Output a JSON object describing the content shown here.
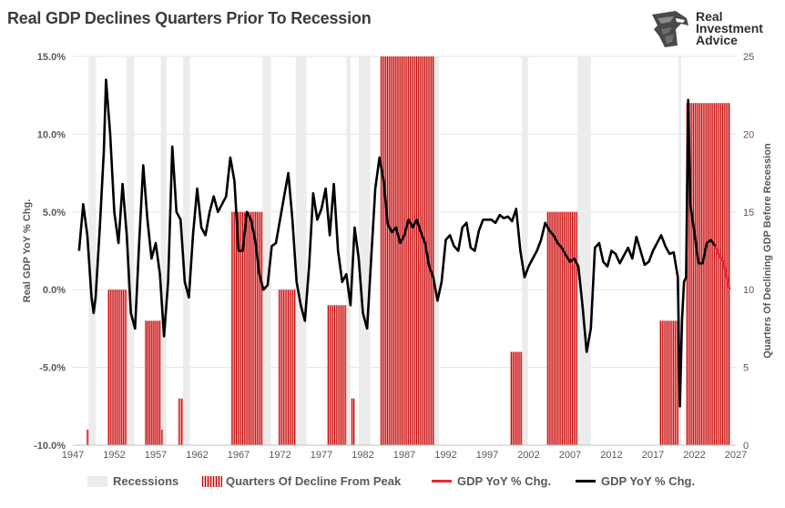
{
  "title": "Real GDP Declines Quarters Prior To Recession",
  "logo": {
    "line1": "Real",
    "line2": "Investment",
    "line3": "Advice",
    "icon": "eagle-head-icon"
  },
  "legend": {
    "recessions": "Recessions",
    "quarters": "Quarters Of Decline From Peak",
    "gdp_red": "GDP YoY % Chg.",
    "gdp_black": "GDP YoY % Chg."
  },
  "colors": {
    "recession": "#ececec",
    "bar": "#c00000",
    "bar_light": "#f2a0a0",
    "line_black": "#000000",
    "line_red": "#e8273a",
    "text": "#595959"
  },
  "chart_data": {
    "type": "line",
    "title": "Real GDP Declines Quarters Prior To Recession",
    "ylabel": "Real GDP YoY % Chg.",
    "y2label": "Quarters Of Declining GDP Before Recession",
    "xlim": [
      1947,
      2027
    ],
    "ylim": [
      -10,
      15
    ],
    "y2lim": [
      0,
      25
    ],
    "x_ticks": [
      1947,
      1952,
      1957,
      1962,
      1967,
      1972,
      1977,
      1982,
      1987,
      1992,
      1997,
      2002,
      2007,
      2012,
      2017,
      2022,
      2027
    ],
    "y_ticks": [
      "-10.0%",
      "-5.0%",
      "0.0%",
      "5.0%",
      "10.0%",
      "15.0%"
    ],
    "y2_ticks": [
      0,
      5,
      10,
      15,
      20,
      25
    ],
    "grid": true,
    "legend_position": "bottom",
    "recessions": [
      [
        1948.9,
        1949.8
      ],
      [
        1953.5,
        1954.4
      ],
      [
        1957.6,
        1958.3
      ],
      [
        1960.3,
        1961.1
      ],
      [
        1969.9,
        1970.9
      ],
      [
        1973.9,
        1975.2
      ],
      [
        1980.0,
        1980.5
      ],
      [
        1981.5,
        1982.9
      ],
      [
        1990.6,
        1991.2
      ],
      [
        2001.2,
        2001.9
      ],
      [
        2007.9,
        2009.5
      ],
      [
        2020.1,
        2020.4
      ]
    ],
    "decline_periods": [
      {
        "start": 1948.6,
        "end": 1948.95,
        "quarters": 1
      },
      {
        "start": 1951.2,
        "end": 1953.5,
        "quarters": 10
      },
      {
        "start": 1955.7,
        "end": 1957.6,
        "quarters": 8
      },
      {
        "start": 1957.6,
        "end": 1957.9,
        "quarters": 1
      },
      {
        "start": 1959.7,
        "end": 1960.3,
        "quarters": 3
      },
      {
        "start": 1966.1,
        "end": 1969.9,
        "quarters": 15
      },
      {
        "start": 1971.8,
        "end": 1973.9,
        "quarters": 10
      },
      {
        "start": 1977.7,
        "end": 1980.0,
        "quarters": 9
      },
      {
        "start": 1980.6,
        "end": 1981.0,
        "quarters": 3
      },
      {
        "start": 1984.1,
        "end": 1990.6,
        "quarters": 25
      },
      {
        "start": 1999.8,
        "end": 2001.2,
        "quarters": 6
      },
      {
        "start": 2004.2,
        "end": 2007.9,
        "quarters": 15
      },
      {
        "start": 2017.8,
        "end": 2020.1,
        "quarters": 8
      },
      {
        "start": 2021.0,
        "end": 2026.3,
        "quarters": 22
      }
    ],
    "series": [
      {
        "color": "black",
        "x": [
          1947.75,
          1948.25,
          1948.75,
          1949.25,
          1949.5,
          1949.75,
          1950.25,
          1950.75,
          1951.0,
          1951.5,
          1952.0,
          1952.5,
          1953.0,
          1953.5,
          1954.0,
          1954.5,
          1955.0,
          1955.5,
          1956.0,
          1956.5,
          1957.0,
          1957.5,
          1958.0,
          1958.5,
          1959.0,
          1959.5,
          1960.0,
          1960.5,
          1961.0,
          1961.5,
          1962.0,
          1962.5,
          1963.0,
          1963.5,
          1964.0,
          1964.5,
          1965.0,
          1965.5,
          1966.0,
          1966.5,
          1967.0,
          1967.5,
          1968.0,
          1968.5,
          1969.0,
          1969.5,
          1970.0,
          1970.5,
          1971.0,
          1971.5,
          1972.0,
          1972.5,
          1973.0,
          1973.5,
          1974.0,
          1974.5,
          1975.0,
          1975.5,
          1976.0,
          1976.5,
          1977.0,
          1977.5,
          1978.0,
          1978.5,
          1979.0,
          1979.5,
          1980.0,
          1980.5,
          1981.0,
          1981.5,
          1982.0,
          1982.5,
          1983.0,
          1983.5,
          1984.0,
          1984.5,
          1985.0,
          1985.5,
          1986.0,
          1986.5,
          1987.0,
          1987.5,
          1988.0,
          1988.5,
          1989.0,
          1989.5,
          1990.0,
          1990.5,
          1991.0,
          1991.5,
          1992.0,
          1992.5,
          1993.0,
          1993.5,
          1994.0,
          1994.5,
          1995.0,
          1995.5,
          1996.0,
          1996.5,
          1997.0,
          1997.5,
          1998.0,
          1998.5,
          1999.0,
          1999.5,
          2000.0,
          2000.5,
          2001.0,
          2001.5,
          2002.0,
          2002.5,
          2003.0,
          2003.5,
          2004.0,
          2004.5,
          2005.0,
          2005.5,
          2006.0,
          2006.5,
          2007.0,
          2007.5,
          2008.0,
          2008.5,
          2009.0,
          2009.5,
          2010.0,
          2010.5,
          2011.0,
          2011.5,
          2012.0,
          2012.5,
          2013.0,
          2013.5,
          2014.0,
          2014.5,
          2015.0,
          2015.5,
          2016.0,
          2016.5,
          2017.0,
          2017.5,
          2018.0,
          2018.5,
          2019.0,
          2019.5,
          2020.0,
          2020.25,
          2020.5,
          2020.75,
          2021.0,
          2021.25,
          2021.5,
          2022.0,
          2022.5,
          2023.0,
          2023.5,
          2024.0,
          2024.5
        ],
        "y": [
          2.5,
          5.5,
          3.5,
          -0.5,
          -1.5,
          -0.5,
          4.0,
          9.0,
          13.5,
          10.0,
          5.0,
          3.0,
          6.8,
          3.5,
          -1.5,
          -2.5,
          3.0,
          8.0,
          4.5,
          2.0,
          3.0,
          1.0,
          -3.0,
          0.5,
          9.2,
          5.0,
          4.5,
          0.5,
          -0.5,
          3.5,
          6.5,
          4.0,
          3.5,
          5.0,
          6.0,
          5.0,
          5.5,
          6.0,
          8.5,
          7.0,
          2.5,
          2.5,
          5.0,
          4.5,
          3.2,
          1.0,
          0.0,
          0.3,
          2.8,
          3.0,
          4.5,
          6.0,
          7.5,
          4.5,
          0.5,
          -1.0,
          -2.0,
          1.5,
          6.2,
          4.5,
          5.2,
          6.5,
          3.5,
          6.8,
          2.5,
          0.5,
          1.0,
          -1.0,
          4.0,
          2.0,
          -1.5,
          -2.5,
          2.0,
          6.5,
          8.5,
          7.0,
          4.2,
          3.7,
          4.0,
          3.0,
          3.5,
          4.5,
          4.0,
          4.5,
          3.7,
          3.0,
          1.5,
          0.8,
          -0.7,
          0.5,
          3.2,
          3.5,
          2.8,
          2.5,
          4.0,
          4.3,
          2.7,
          2.5,
          3.8,
          4.5,
          4.5,
          4.5,
          4.3,
          4.8,
          4.6,
          4.7,
          4.4,
          5.2,
          2.5,
          0.8,
          1.5,
          2.0,
          2.5,
          3.2,
          4.3,
          3.8,
          3.5,
          3.0,
          2.7,
          2.2,
          1.8,
          2.0,
          1.5,
          -1.0,
          -4.0,
          -2.5,
          2.7,
          3.0,
          1.8,
          1.5,
          2.5,
          2.3,
          1.7,
          2.2,
          2.7,
          2.0,
          3.4,
          2.5,
          1.6,
          1.8,
          2.5,
          3.0,
          3.5,
          2.8,
          2.3,
          2.4,
          0.8,
          -7.5,
          -2.0,
          0.5,
          0.8,
          12.2,
          5.5,
          3.7,
          1.7,
          1.7,
          3.0,
          3.2,
          2.8
        ]
      },
      {
        "color": "red",
        "x": [
          2024.5,
          2025.0,
          2025.5,
          2026.0,
          2026.25
        ],
        "y": [
          2.8,
          2.2,
          1.8,
          0.6,
          0.0
        ]
      }
    ]
  }
}
